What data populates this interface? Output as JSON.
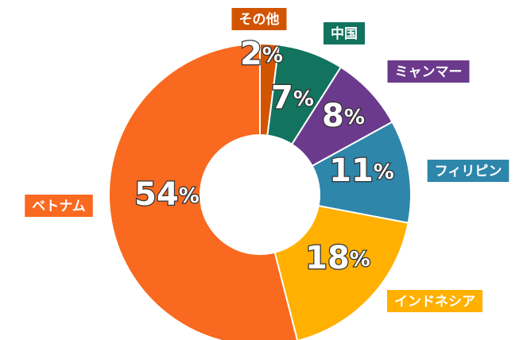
{
  "chart_data": {
    "type": "donut",
    "categories": [
      "その他",
      "中国",
      "ミャンマー",
      "フィリピン",
      "インドネシア",
      "ベトナム"
    ],
    "values": [
      2,
      7,
      8,
      11,
      18,
      54
    ],
    "value_labels": [
      "2%",
      "7%",
      "8%",
      "11%",
      "18%",
      "54%"
    ],
    "colors": [
      "#d35400",
      "#12735e",
      "#6b3a8c",
      "#2e86ab",
      "#ffb000",
      "#f9691f"
    ]
  }
}
